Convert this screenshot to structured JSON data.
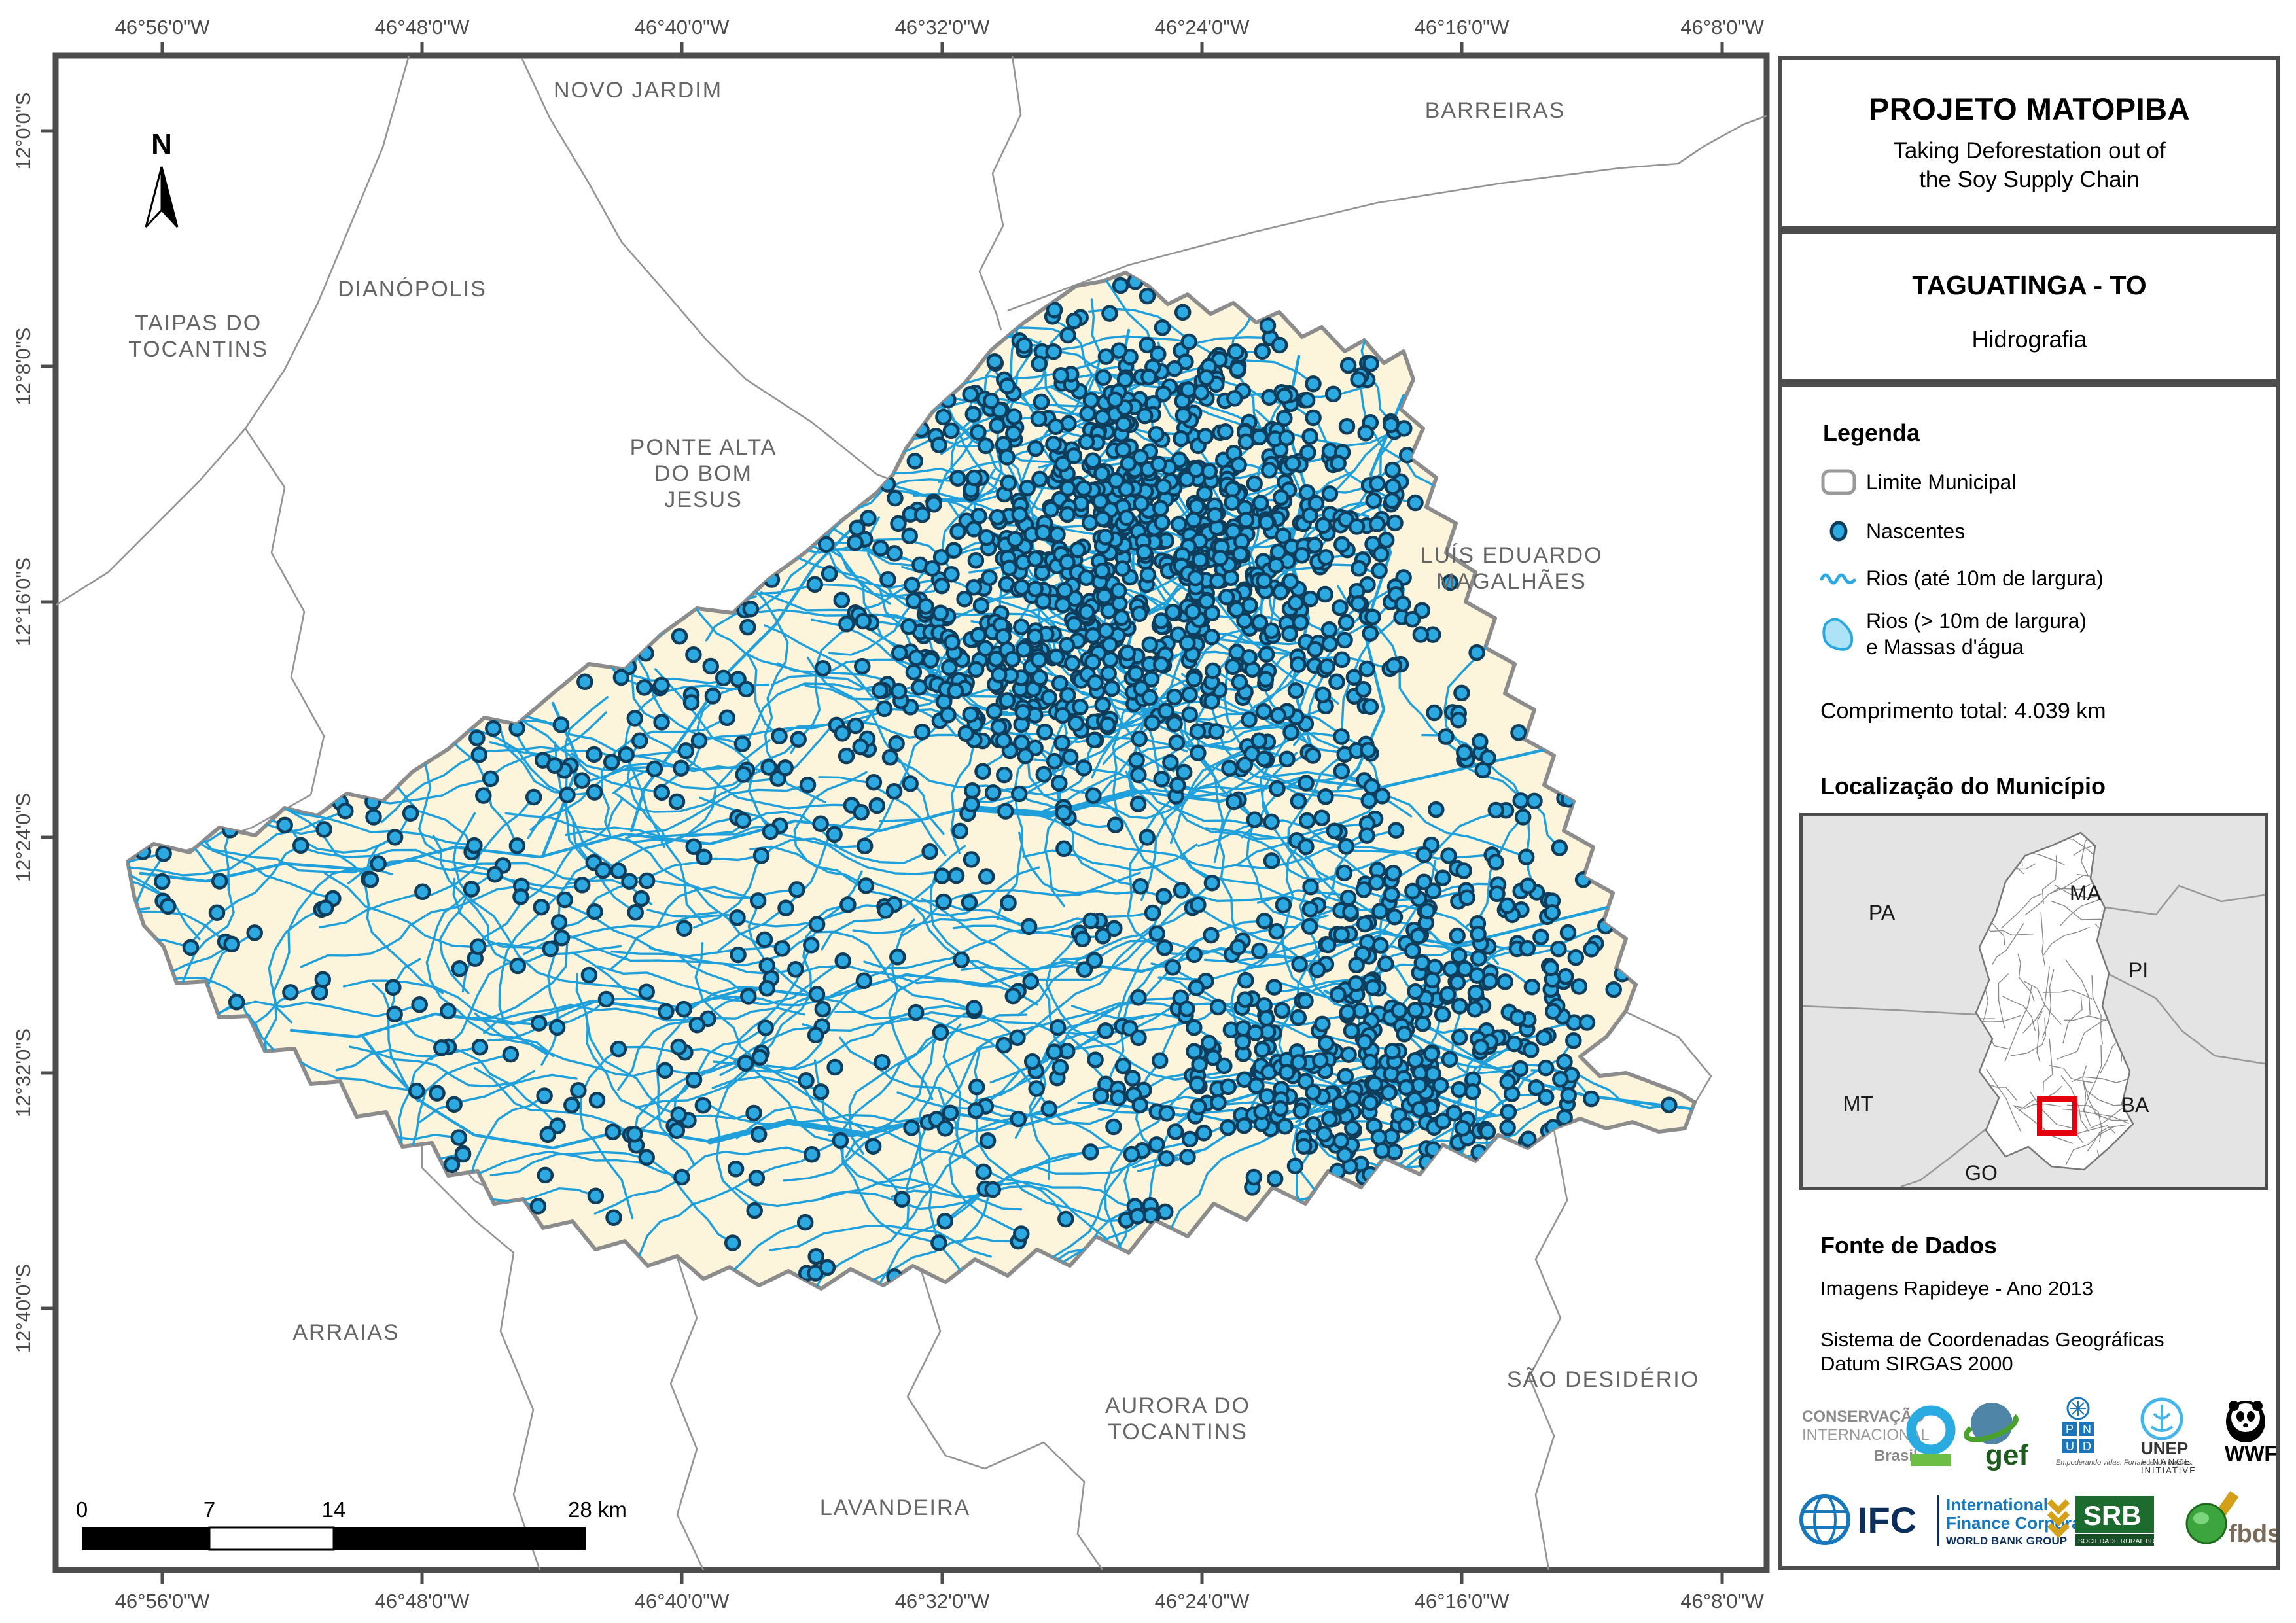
{
  "panel": {
    "title": "PROJETO MATOPIBA",
    "subtitle": "Taking Deforestation out of\nthe Soy Supply Chain",
    "municipality": "TAGUATINGA - TO",
    "theme": "Hidrografia",
    "legend": {
      "title": "Legenda",
      "items": [
        {
          "label": "Limite Municipal"
        },
        {
          "label": "Nascentes"
        },
        {
          "label": "Rios (até 10m de largura)"
        },
        {
          "label": "Rios (> 10m de largura)\ne Massas d'água"
        }
      ],
      "total_length": "Comprimento total:  4.039 km"
    },
    "location": {
      "title": "Localização do Município",
      "states": [
        "PA",
        "MA",
        "PI",
        "MT",
        "BA",
        "GO"
      ]
    },
    "sources": {
      "title": "Fonte de Dados",
      "line1": "Imagens Rapideye - Ano 2013",
      "line2": "Sistema de Coordenadas Geográficas\nDatum SIRGAS 2000"
    },
    "logos": {
      "ci_line1": "CONSERVAÇÃO",
      "ci_line2": "INTERNACIONAL",
      "ci_line3": "Brasil",
      "gef": "gef",
      "pnud_p": "P",
      "pnud_n": "N",
      "pnud_u": "U",
      "pnud_d": "D",
      "pnud_tag": "Empoderando vidas.\nFortalecendo nações.",
      "unep_line1": "UNEP",
      "unep_line2": "FINANCE",
      "unep_line3": "INITIATIVE",
      "wwf": "WWF",
      "ifc": "IFC",
      "ifc_line1": "International",
      "ifc_line2": "Finance Corporation",
      "ifc_line3": "WORLD BANK GROUP",
      "srb": "SRB",
      "srb_sub": "SOCIEDADE RURAL BRASILEIRA",
      "fbds": "fbds"
    }
  },
  "map": {
    "north_label": "N",
    "labels": [
      {
        "text": "DIANÓPOLIS"
      },
      {
        "text": "NOVO JARDIM"
      },
      {
        "text": "TAIPAS DO\nTOCANTINS"
      },
      {
        "text": "PONTE ALTA\nDO BOM\nJESUS"
      },
      {
        "text": "BARREIRAS"
      },
      {
        "text": "LUÍS EDUARDO\nMAGALHÃES"
      },
      {
        "text": "ARRAIAS"
      },
      {
        "text": "AURORA DO\nTOCANTINS"
      },
      {
        "text": "SÃO DESIDÉRIO"
      },
      {
        "text": "LAVANDEIRA"
      }
    ],
    "axis": {
      "lon": [
        "46°56'0\"W",
        "46°48'0\"W",
        "46°40'0\"W",
        "46°32'0\"W",
        "46°24'0\"W",
        "46°16'0\"W",
        "46°8'0\"W"
      ],
      "lat": [
        "12°0'0\"S",
        "12°8'0\"S",
        "12°16'0\"S",
        "12°24'0\"S",
        "12°32'0\"S",
        "12°40'0\"S"
      ]
    },
    "scalebar": {
      "labels": [
        "0",
        "7",
        "14",
        "28 km"
      ]
    },
    "colors": {
      "municipality_fill": "#fcf5dc",
      "municipality_stroke": "#8c8c8c",
      "river": "#1fa0db",
      "spring_fill": "#2da9e1",
      "spring_stroke": "#0f3d5c",
      "neighbor_line": "#949494",
      "frame": "#4d4d4d",
      "label_gray": "#666666",
      "inset_bg": "#e4e4e4",
      "locator_box_red": "#e3000f"
    }
  }
}
